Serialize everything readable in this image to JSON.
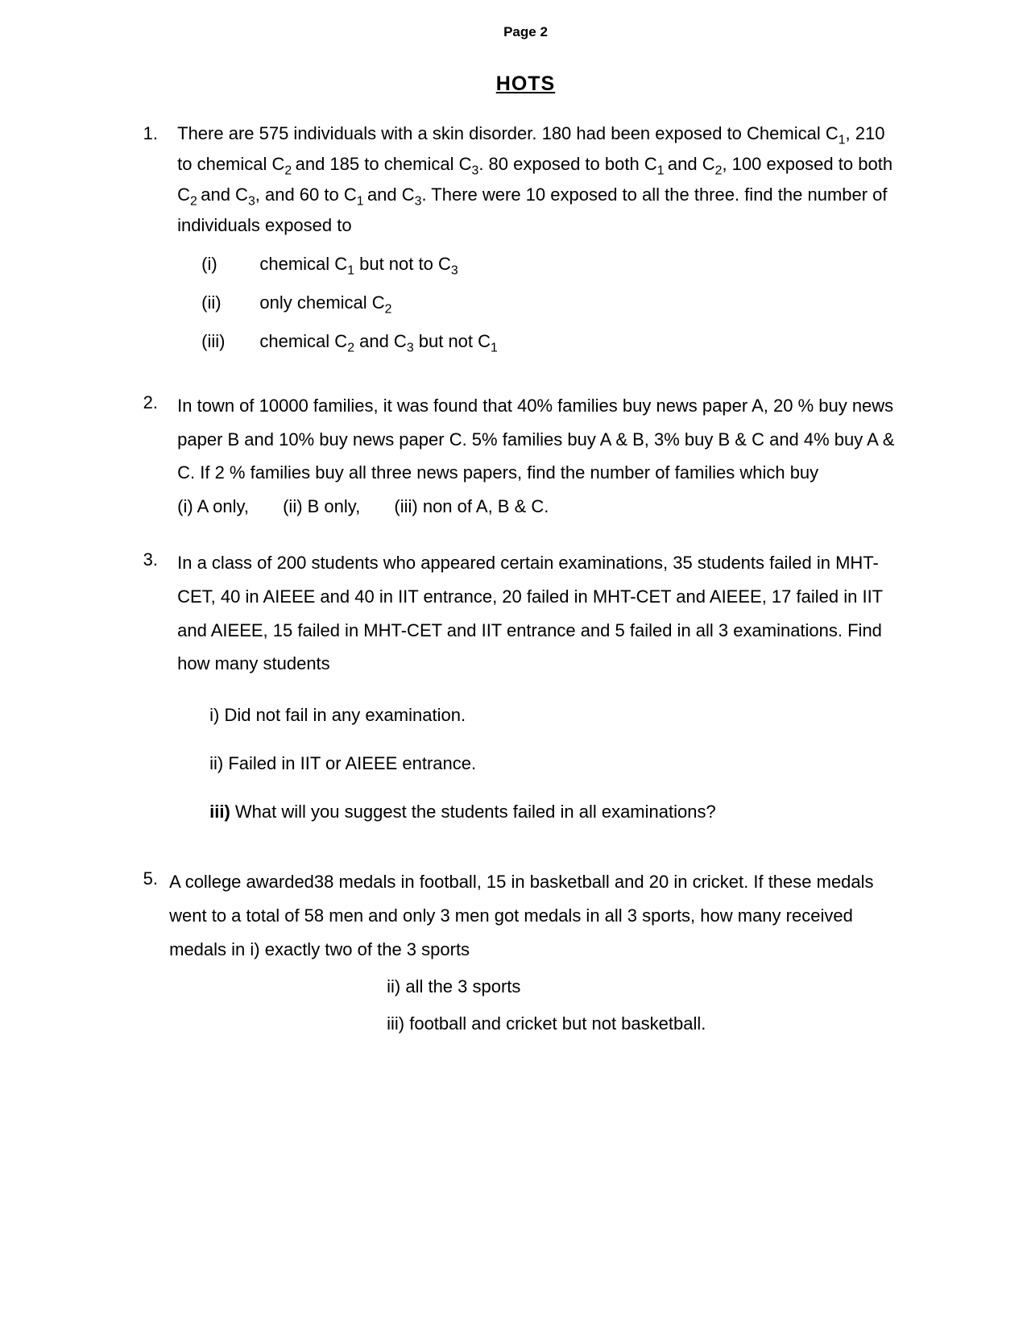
{
  "page_number": "Page 2",
  "title": "HOTS",
  "questions": [
    {
      "num": "1.",
      "text_parts": [
        "There are 575 individuals with a skin disorder. 180 had been exposed to Chemical C",
        "1",
        ", 210 to chemical C",
        "2 ",
        "and 185 to chemical C",
        "3",
        ". 80 exposed to both C",
        "1 ",
        "and C",
        "2",
        ", 100 exposed to both C",
        "2 ",
        "and C",
        "3",
        ", and   60 to C",
        "1 ",
        "and C",
        "3",
        ". There were 10 exposed to all the three. find the number of individuals exposed to"
      ],
      "subs": [
        {
          "n": "(i)",
          "parts": [
            "chemical C",
            "1",
            " but not to C",
            "3",
            ""
          ]
        },
        {
          "n": "(ii)",
          "parts": [
            "only chemical C",
            "2",
            ""
          ]
        },
        {
          "n": "(iii)",
          "parts": [
            "chemical C",
            "2",
            " and C",
            "3",
            " but  not C",
            "1",
            ""
          ]
        }
      ]
    },
    {
      "num": "2.",
      "text": "In town of 10000 families, it was found that 40% families buy news paper A, 20 % buy news paper B and 10% buy news paper C. 5% families buy A & B, 3% buy B & C and 4% buy A & C. If 2 % families buy all three news papers, find the number of families which buy",
      "inline_opts": [
        "(i) A only,",
        "(ii) B only,",
        "(iii) non of A, B & C."
      ]
    },
    {
      "num": "3.",
      "text": "In a class of 200 students who appeared certain examinations, 35 students failed in MHT-CET, 40 in AIEEE and 40 in IIT entrance, 20 failed in MHT-CET and AIEEE, 17   failed in IIT and AIEEE, 15 failed in MHT-CET and IIT entrance and 5 failed in all 3 examinations. Find how many students",
      "subs2": [
        "i) Did not fail in any examination.",
        "ii) Failed in IIT or AIEEE entrance.",
        "iii) What will you suggest the students failed in all examinations?"
      ],
      "sub2_bold_prefix": "iii)"
    },
    {
      "num": "5.",
      "text": "A college awarded38 medals in football, 15 in basketball and 20 in cricket. If these medals went to a total of 58 men and only 3 men got medals in all 3 sports, how many received medals in   i) exactly two of the 3 sports",
      "q5subs": [
        "ii)  all the 3 sports",
        "iii) football and cricket but not basketball."
      ]
    }
  ]
}
